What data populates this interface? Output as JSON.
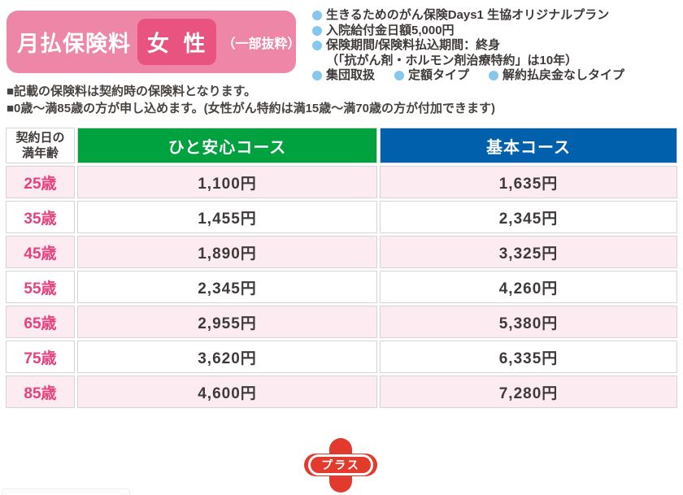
{
  "banner": {
    "title": "月払保険料",
    "gender": "女 性",
    "note": "（一部抜粋）"
  },
  "features": {
    "items": [
      "生きるためのがん保険Days1 生協オリジナルプラン",
      "入院給付金日額5,000円",
      "保険期間/保険料払込期間：終身"
    ],
    "sub_note": "（「抗がん剤・ホルモン剤治療特約」は10年）",
    "tags": [
      "集団取扱",
      "定額タイプ",
      "解約払戻金なしタイプ"
    ]
  },
  "notes": {
    "line1": "■記載の保険料は契約時の保険料となります。",
    "line2": "■0歳～満85歳の方が申し込めます。(女性がん特約は満15歳～満70歳の方が付加できます)"
  },
  "table": {
    "age_header": {
      "line1": "契約日の",
      "line2": "満年齢"
    },
    "course_headers": [
      "ひと安心コース",
      "基本コース"
    ],
    "rows": [
      {
        "age": "25歳",
        "course1": "1,100円",
        "course2": "1,635円"
      },
      {
        "age": "35歳",
        "course1": "1,455円",
        "course2": "2,345円"
      },
      {
        "age": "45歳",
        "course1": "1,890円",
        "course2": "3,325円"
      },
      {
        "age": "55歳",
        "course1": "2,345円",
        "course2": "4,260円"
      },
      {
        "age": "65歳",
        "course1": "2,955円",
        "course2": "5,380円"
      },
      {
        "age": "75歳",
        "course1": "3,620円",
        "course2": "6,335円"
      },
      {
        "age": "85歳",
        "course1": "4,600円",
        "course2": "7,280円"
      }
    ]
  },
  "plus_badge": {
    "label": "プラス"
  },
  "colors": {
    "banner_pink": "#ee86a8",
    "gender_badge_pink": "#e8537f",
    "course1_green": "#00a23f",
    "course2_blue": "#0060ab",
    "row_pink": "#fcebf1",
    "age_text_pink": "#e6407d",
    "bullet_blue": "#85c8ec",
    "plus_red": "#e23a2c",
    "body_text": "#3f3a39"
  }
}
